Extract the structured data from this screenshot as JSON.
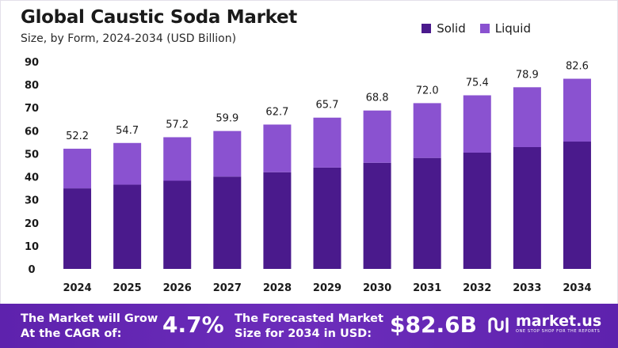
{
  "header": {
    "title": "Global Caustic Soda Market",
    "subtitle": "Size, by Form, 2024-2034 (USD Billion)"
  },
  "legend": {
    "solid": "Solid",
    "liquid": "Liquid"
  },
  "colors": {
    "solid": "#4a1a8c",
    "liquid": "#8a52d0",
    "footer": "#5e22ad"
  },
  "chart_data": {
    "type": "bar",
    "stacked": true,
    "title": "Global Caustic Soda Market",
    "subtitle": "Size, by Form, 2024-2034 (USD Billion)",
    "categories": [
      "2024",
      "2025",
      "2026",
      "2027",
      "2028",
      "2029",
      "2030",
      "2031",
      "2032",
      "2033",
      "2034"
    ],
    "series": [
      {
        "name": "Solid",
        "values": [
          35.0,
          36.6,
          38.3,
          40.1,
          42.0,
          44.0,
          46.1,
          48.2,
          50.5,
          52.9,
          55.3
        ]
      },
      {
        "name": "Liquid",
        "values": [
          17.2,
          18.1,
          18.9,
          19.8,
          20.7,
          21.7,
          22.7,
          23.8,
          24.9,
          26.0,
          27.3
        ]
      }
    ],
    "totals": [
      "52.2",
      "54.7",
      "57.2",
      "59.9",
      "62.7",
      "65.7",
      "68.8",
      "72.0",
      "75.4",
      "78.9",
      "82.6"
    ],
    "ylim": [
      0,
      90
    ],
    "yticks": [
      0,
      10,
      20,
      30,
      40,
      50,
      60,
      70,
      80,
      90
    ],
    "xlabel": "",
    "ylabel": "",
    "grid": false,
    "legend_position": "top-right"
  },
  "footer": {
    "cagr_label_line1": "The Market will Grow",
    "cagr_label_line2": "At the CAGR of:",
    "cagr_value": "4.7%",
    "forecast_label_line1": "The Forecasted Market",
    "forecast_label_line2": "Size for 2034 in USD:",
    "forecast_value": "$82.6B",
    "brand": "market.us",
    "brand_tagline": "ONE STOP SHOP FOR THE REPORTS"
  }
}
